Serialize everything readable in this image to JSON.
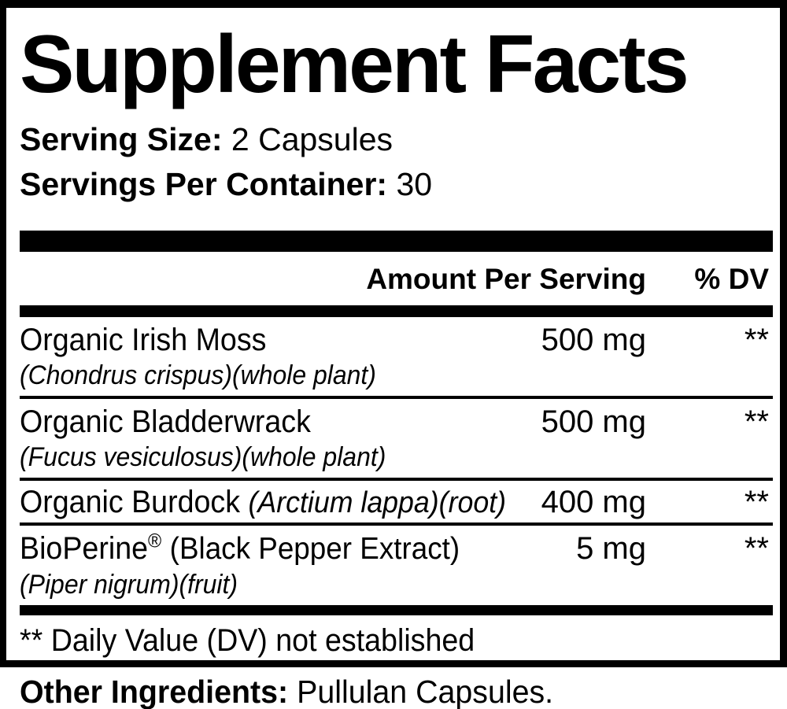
{
  "panel": {
    "title": "Supplement Facts",
    "serving_size_label": "Serving Size:",
    "serving_size_value": "2 Capsules",
    "servings_per_container_label": "Servings Per Container:",
    "servings_per_container_value": "30",
    "footnote": "** Daily Value (DV) not established"
  },
  "table": {
    "amount_header": "Amount Per Serving",
    "dv_header": "% DV",
    "rows": [
      {
        "name": "Organic Irish Moss",
        "detail": "(Chondrus crispus)(whole plant)",
        "amount": "500 mg",
        "dv": "**"
      },
      {
        "name": "Organic Bladderwrack",
        "detail": "(Fucus vesiculosus)(whole plant)",
        "amount": "500 mg",
        "dv": "**"
      },
      {
        "name": "Organic Burdock",
        "name_detail_italic": "(Arctium lappa)(root)",
        "amount": "400 mg",
        "dv": "**"
      },
      {
        "name": "BioPerine",
        "reg_mark": "®",
        "name_suffix": "(Black Pepper Extract)",
        "detail": "(Piper nigrum)(fruit)",
        "amount": "5 mg",
        "dv": "**"
      }
    ]
  },
  "other_ingredients": {
    "label": "Other Ingredients:",
    "value": "Pullulan Capsules."
  },
  "colors": {
    "ink": "#000000",
    "background": "#ffffff"
  }
}
